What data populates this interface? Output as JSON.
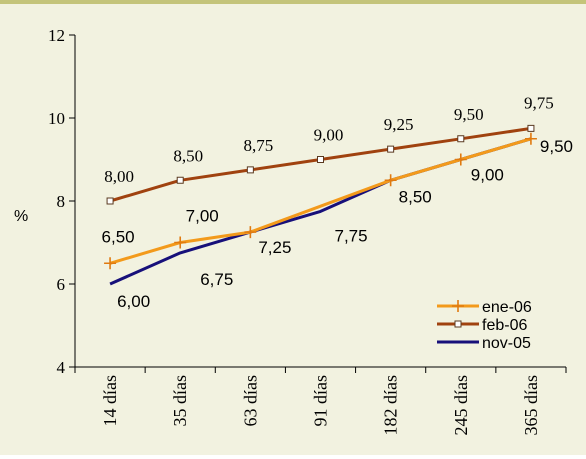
{
  "chart_data": {
    "type": "line",
    "ylabel": "%",
    "ylim": [
      4,
      12
    ],
    "yticks": [
      "4",
      "6",
      "8",
      "10",
      "12"
    ],
    "categories": [
      "14 días",
      "35 días",
      "63 días",
      "91 días",
      "182 días",
      "245 días",
      "365 días"
    ],
    "legend_position": "bottom-right",
    "grid": false,
    "series": [
      {
        "name": "ene-06",
        "color": "#f39a1b",
        "marker": "plus",
        "values": [
          6.5,
          7.0,
          7.25,
          null,
          8.5,
          9.0,
          9.5
        ],
        "labels": [
          "6,50",
          "7,00",
          "7,25",
          null,
          "8,50",
          "9,00",
          "9,50"
        ]
      },
      {
        "name": "feb-06",
        "color": "#a0420f",
        "marker": "square",
        "values": [
          8.0,
          8.5,
          8.75,
          9.0,
          9.25,
          9.5,
          9.75
        ],
        "labels": [
          "8,00",
          "8,50",
          "8,75",
          "9,00",
          "9,25",
          "9,50",
          "9,75"
        ]
      },
      {
        "name": "nov-05",
        "color": "#17107a",
        "marker": "none",
        "values": [
          6.0,
          6.75,
          7.25,
          7.75,
          8.5,
          9.0,
          9.5
        ],
        "labels": [
          "6,00",
          "6,75",
          null,
          "7,75",
          null,
          null,
          null
        ]
      }
    ]
  }
}
